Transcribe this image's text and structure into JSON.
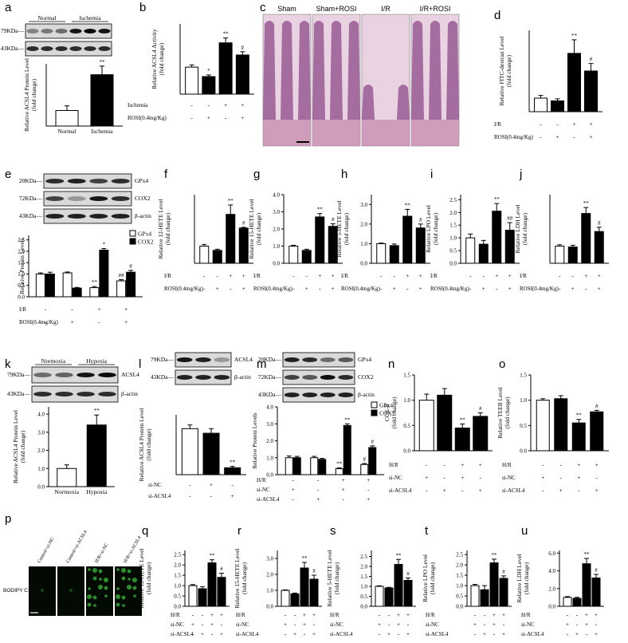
{
  "panel_letters": [
    "a",
    "b",
    "c",
    "d",
    "e",
    "f",
    "g",
    "h",
    "i",
    "j",
    "k",
    "l",
    "m",
    "n",
    "o",
    "p",
    "q",
    "r",
    "s",
    "t",
    "u"
  ],
  "blots": {
    "a": {
      "groups": [
        "Normal",
        "Ischemia"
      ],
      "kda": [
        "79KDa",
        "43KDa"
      ]
    },
    "e": {
      "kda": [
        "20KDa",
        "72KDa",
        "43KDa"
      ],
      "proteins": [
        "GPx4",
        "COX2",
        "β-actin"
      ]
    },
    "k": {
      "groups": [
        "Normoxia",
        "Hypoxia"
      ],
      "kda": [
        "79KDa",
        "43KDa"
      ],
      "proteins": [
        "ACSL4",
        "β-actin"
      ]
    },
    "l": {
      "kda": [
        "79KDa",
        "43KDa"
      ],
      "proteins": [
        "ACSL4",
        "β-actin"
      ]
    },
    "m": {
      "kda": [
        "20KDa",
        "72KDa",
        "43KDa"
      ],
      "proteins": [
        "GPx4",
        "COX2",
        "β-actin"
      ]
    }
  },
  "histology": {
    "labels": [
      "Sham",
      "Sham+ROSI",
      "I/R",
      "I/R+ROSI"
    ]
  },
  "fluorescence": {
    "row_label": "BODIPY C11",
    "labels": [
      "Control+si-NC",
      "Control+si-ACSL4",
      "H/R+si-NC",
      "H/R+si-ACSL4"
    ]
  },
  "chart_data": [
    {
      "id": "a",
      "type": "bar",
      "ylabel": "Relative ACSL4 Protein Level\n(fold change)",
      "categories": [
        "Normal",
        "Ischemia"
      ],
      "values": [
        1.0,
        3.3
      ],
      "errors": [
        0.3,
        0.55
      ],
      "fills": [
        "#ffffff",
        "#000000"
      ],
      "sig": [
        "",
        "**"
      ],
      "ylim": [
        0,
        4
      ],
      "ticks": [],
      "treatments": []
    },
    {
      "id": "b",
      "type": "bar",
      "ylabel": "Relative ACSL4 Activity\n(fold change)",
      "values": [
        1.0,
        0.65,
        1.9,
        1.45
      ],
      "errors": [
        0.08,
        0.06,
        0.18,
        0.12
      ],
      "fills": [
        "#ffffff",
        "#000000",
        "#000000",
        "#000000"
      ],
      "sig": [
        "",
        "*",
        "**",
        "#"
      ],
      "ylim": [
        0,
        2.6
      ],
      "ticks": [],
      "treatments": [
        {
          "label": "Ischemia",
          "marks": [
            "-",
            "-",
            "+",
            "+"
          ]
        },
        {
          "label": "ROSI(0.4mg/Kg)",
          "marks": [
            "-",
            "+",
            "-",
            "+"
          ]
        }
      ]
    },
    {
      "id": "d",
      "type": "bar",
      "ylabel": "Relative FITC-dextran Level\n(fold change)",
      "values": [
        1.0,
        0.8,
        4.3,
        3.0
      ],
      "errors": [
        0.2,
        0.15,
        1.0,
        0.55
      ],
      "fills": [
        "#ffffff",
        "#000000",
        "#000000",
        "#000000"
      ],
      "sig": [
        "",
        "",
        "**",
        "#"
      ],
      "ylim": [
        0,
        6
      ],
      "ticks": [],
      "treatments": [
        {
          "label": "I/R",
          "marks": [
            "-",
            "-",
            "+",
            "+"
          ]
        },
        {
          "label": "ROSI(0.4mg/Kg)",
          "marks": [
            "-",
            "+",
            "-",
            "+"
          ]
        }
      ]
    },
    {
      "id": "e",
      "type": "grouped-bar",
      "ylabel": "Relative Protein Levels",
      "series": [
        {
          "name": "GPx4",
          "values": [
            1.0,
            1.05,
            0.4,
            0.7
          ],
          "errors": [
            0.05,
            0.04,
            0.05,
            0.05
          ]
        },
        {
          "name": "COX2",
          "values": [
            1.0,
            0.38,
            2.05,
            1.08
          ],
          "errors": [
            0.08,
            0.03,
            0.07,
            0.08
          ]
        }
      ],
      "fills": [
        "#ffffff",
        "#000000"
      ],
      "sig_series": [
        [
          "",
          "",
          "**",
          "##"
        ],
        [
          "",
          "",
          "*",
          "#"
        ]
      ],
      "ylim": [
        0,
        2.7
      ],
      "ticks": [
        0,
        0.5,
        1.0,
        1.5,
        2.0,
        2.5
      ],
      "treatments": [
        {
          "label": "I/R",
          "marks": [
            "-",
            "-",
            "+",
            "+"
          ]
        },
        {
          "label": "ROSI(0.4mg/Kg)",
          "marks": [
            "-",
            "+",
            "-",
            "+"
          ]
        }
      ]
    },
    {
      "id": "f",
      "type": "bar",
      "ylabel": "Relative 12-HETE Level\n(fold change)",
      "values": [
        1.0,
        0.75,
        2.85,
        2.05
      ],
      "errors": [
        0.1,
        0.07,
        0.55,
        0.05
      ],
      "fills": [
        "#ffffff",
        "#000000",
        "#000000",
        "#000000"
      ],
      "sig": [
        "",
        "",
        "**",
        "#"
      ],
      "ylim": [
        0,
        4
      ],
      "ticks": [],
      "treatments": [
        {
          "label": "I/R",
          "marks": [
            "-",
            "-",
            "+",
            "+"
          ]
        },
        {
          "label": "ROSI(0.4mg/Kg)",
          "marks": [
            "-",
            "+",
            "-",
            "+"
          ]
        }
      ]
    },
    {
      "id": "g",
      "type": "bar",
      "ylabel": "Relative 15-HETE Level\n(fold change)",
      "values": [
        1.0,
        0.75,
        2.7,
        2.15
      ],
      "errors": [
        0.05,
        0.07,
        0.2,
        0.15
      ],
      "fills": [
        "#ffffff",
        "#000000",
        "#000000",
        "#000000"
      ],
      "sig": [
        "",
        "",
        "**",
        "#"
      ],
      "ylim": [
        0,
        4
      ],
      "ticks": [
        0,
        1.0,
        2.0,
        3.0,
        4.0
      ],
      "treatments": [
        {
          "label": "I/R",
          "marks": [
            "-",
            "-",
            "+",
            "+"
          ]
        },
        {
          "label": "ROSI(0.4mg/Kg)",
          "marks": [
            "-",
            "+",
            "-",
            "+"
          ]
        }
      ]
    },
    {
      "id": "h",
      "type": "bar",
      "ylabel": "Relative 5-HETE Level\n(fold change)",
      "values": [
        1.0,
        0.9,
        2.4,
        1.8
      ],
      "errors": [
        0.03,
        0.08,
        0.35,
        0.2
      ],
      "fills": [
        "#ffffff",
        "#000000",
        "#000000",
        "#000000"
      ],
      "sig": [
        "",
        "",
        "**",
        "#"
      ],
      "ylim": [
        0,
        3.5
      ],
      "ticks": [
        0,
        1.0,
        2.0,
        3.0
      ],
      "treatments": [
        {
          "label": "I/R",
          "marks": [
            "-",
            "-",
            "+",
            "+"
          ]
        },
        {
          "label": "ROSI(0.4mg/Kg)",
          "marks": [
            "-",
            "+",
            "-",
            "+"
          ]
        }
      ]
    },
    {
      "id": "i",
      "type": "bar",
      "ylabel": "Relative LPO Level\n(fold change)",
      "values": [
        1.0,
        0.75,
        2.05,
        1.3
      ],
      "errors": [
        0.15,
        0.15,
        0.3,
        0.3
      ],
      "fills": [
        "#ffffff",
        "#000000",
        "#000000",
        "#000000"
      ],
      "sig": [
        "",
        "",
        "**",
        "##"
      ],
      "ylim": [
        0,
        2.7
      ],
      "ticks": [
        0,
        0.5,
        1.0,
        1.5,
        2.0,
        2.5
      ],
      "treatments": [
        {
          "label": "I/R",
          "marks": [
            "-",
            "-",
            "+",
            "+"
          ]
        },
        {
          "label": "ROSI(0.4mg/Kg)",
          "marks": [
            "-",
            "+",
            "-",
            "+"
          ]
        }
      ]
    },
    {
      "id": "j",
      "type": "bar",
      "ylabel": "Relative LDH Level\n(fold change)",
      "values": [
        1.0,
        0.95,
        2.9,
        1.85
      ],
      "errors": [
        0.08,
        0.1,
        0.35,
        0.25
      ],
      "fills": [
        "#ffffff",
        "#000000",
        "#000000",
        "#000000"
      ],
      "sig": [
        "",
        "",
        "**",
        "#"
      ],
      "ylim": [
        0,
        4
      ],
      "ticks": [],
      "treatments": [
        {
          "label": "I/R",
          "marks": [
            "-",
            "-",
            "+",
            "+"
          ]
        },
        {
          "label": "ROSI(0.4mg/Kg)",
          "marks": [
            "-",
            "+",
            "-",
            "+"
          ]
        }
      ]
    },
    {
      "id": "k",
      "type": "bar",
      "ylabel": "Relative ACSL4 Protein Level\n(fold change)",
      "categories": [
        "Normoxia",
        "Hypoxia"
      ],
      "values": [
        1.0,
        3.4
      ],
      "errors": [
        0.2,
        0.55
      ],
      "fills": [
        "#ffffff",
        "#000000"
      ],
      "sig": [
        "",
        "**"
      ],
      "ylim": [
        0,
        4.4
      ],
      "ticks": [
        0,
        1.0,
        2.0,
        3.0,
        4.0
      ],
      "treatments": []
    },
    {
      "id": "l",
      "type": "bar",
      "ylabel": "Relative ACSL4 Protein Level\n(fold change)",
      "values": [
        1.0,
        0.9,
        0.15
      ],
      "errors": [
        0.08,
        0.1,
        0.03
      ],
      "fills": [
        "#ffffff",
        "#000000",
        "#000000"
      ],
      "sig": [
        "",
        "",
        "**"
      ],
      "ylim": [
        0,
        1.3
      ],
      "ticks": [],
      "treatments": [
        {
          "label": "si-NC",
          "marks": [
            "-",
            "+",
            "-"
          ]
        },
        {
          "label": "si-ACSL4",
          "marks": [
            "-",
            "-",
            "+"
          ]
        }
      ]
    },
    {
      "id": "m",
      "type": "grouped-bar",
      "ylabel": "Relative Protein Levels",
      "series": [
        {
          "name": "GPx4",
          "values": [
            1.0,
            1.0,
            0.35,
            0.6
          ],
          "errors": [
            0.1,
            0.08,
            0.05,
            0.06
          ]
        },
        {
          "name": "COX2",
          "values": [
            1.0,
            0.9,
            2.9,
            1.6
          ],
          "errors": [
            0.08,
            0.06,
            0.1,
            0.1
          ]
        }
      ],
      "fills": [
        "#ffffff",
        "#000000"
      ],
      "sig_series": [
        [
          "",
          "",
          "**",
          "#"
        ],
        [
          "",
          "",
          "**",
          "#"
        ]
      ],
      "ylim": [
        0,
        4
      ],
      "ticks": [
        0,
        1.0,
        2.0,
        3.0,
        4.0
      ],
      "treatments": [
        {
          "label": "H/R",
          "marks": [
            "-",
            "-",
            "+",
            "+"
          ]
        },
        {
          "label": "si-NC",
          "marks": [
            "+",
            "-",
            "+",
            "-"
          ]
        },
        {
          "label": "si-ACSL4",
          "marks": [
            "-",
            "+",
            "-",
            "+"
          ]
        }
      ]
    },
    {
      "id": "n",
      "type": "bar",
      "ylabel": "CCK-8\n(fold change)",
      "values": [
        1.0,
        1.1,
        0.45,
        0.68
      ],
      "errors": [
        0.12,
        0.13,
        0.08,
        0.07
      ],
      "fills": [
        "#ffffff",
        "#000000",
        "#000000",
        "#000000"
      ],
      "sig": [
        "",
        "",
        "**",
        "#"
      ],
      "ylim": [
        0,
        1.5
      ],
      "ticks": [
        0,
        0.5,
        1.0,
        1.5
      ],
      "treatments": [
        {
          "label": "H/R",
          "marks": [
            "-",
            "-",
            "+",
            "+"
          ]
        },
        {
          "label": "si-NC",
          "marks": [
            "+",
            "-",
            "+",
            "-"
          ]
        },
        {
          "label": "si-ACSL4",
          "marks": [
            "-",
            "+",
            "-",
            "+"
          ]
        }
      ]
    },
    {
      "id": "o",
      "type": "bar",
      "ylabel": "Relative TEER Level\n(fold change)",
      "values": [
        1.0,
        1.03,
        0.55,
        0.77
      ],
      "errors": [
        0.03,
        0.06,
        0.07,
        0.03
      ],
      "fills": [
        "#ffffff",
        "#000000",
        "#000000",
        "#000000"
      ],
      "sig": [
        "",
        "",
        "**",
        "#"
      ],
      "ylim": [
        0,
        1.5
      ],
      "ticks": [
        0,
        0.5,
        1.0,
        1.5
      ],
      "treatments": [
        {
          "label": "H/R",
          "marks": [
            "-",
            "-",
            "+",
            "+"
          ]
        },
        {
          "label": "si-NC",
          "marks": [
            "+",
            "-",
            "+",
            "-"
          ]
        },
        {
          "label": "si-ACSL4",
          "marks": [
            "-",
            "+",
            "-",
            "+"
          ]
        }
      ]
    },
    {
      "id": "q",
      "type": "bar",
      "ylabel": "Relative 12-HETE Level\n(fold change)",
      "values": [
        1.0,
        0.85,
        2.1,
        1.4
      ],
      "errors": [
        0.05,
        0.1,
        0.15,
        0.2
      ],
      "fills": [
        "#ffffff",
        "#000000",
        "#000000",
        "#000000"
      ],
      "sig": [
        "",
        "",
        "**",
        "#"
      ],
      "ylim": [
        0,
        2.7
      ],
      "ticks": [
        0,
        0.5,
        1.0,
        1.5,
        2.0,
        2.5
      ],
      "treatments": [
        {
          "label": "H/R",
          "marks": [
            "-",
            "-",
            "+",
            "+"
          ]
        },
        {
          "label": "si-NC",
          "marks": [
            "+",
            "-",
            "+",
            "-"
          ]
        },
        {
          "label": "si-ACSL4",
          "marks": [
            "-",
            "+",
            "-",
            "+"
          ]
        }
      ]
    },
    {
      "id": "r",
      "type": "bar",
      "ylabel": "Relative 15-HETE Level\n(fold change)",
      "values": [
        1.0,
        0.78,
        2.4,
        1.7
      ],
      "errors": [
        0.03,
        0.05,
        0.35,
        0.25
      ],
      "fills": [
        "#ffffff",
        "#000000",
        "#000000",
        "#000000"
      ],
      "sig": [
        "",
        "",
        "**",
        "#"
      ],
      "ylim": [
        0,
        3.5
      ],
      "ticks": [
        0,
        1.0,
        2.0,
        3.0
      ],
      "treatments": [
        {
          "label": "H/R",
          "marks": [
            "-",
            "-",
            "+",
            "+"
          ]
        },
        {
          "label": "si-NC",
          "marks": [
            "+",
            "-",
            "+",
            "-"
          ]
        },
        {
          "label": "si-ACSL4",
          "marks": [
            "-",
            "+",
            "-",
            "+"
          ]
        }
      ]
    },
    {
      "id": "s",
      "type": "bar",
      "ylabel": "Relative 5-HETE Level\n(fold change)",
      "values": [
        1.0,
        0.92,
        2.1,
        1.3
      ],
      "errors": [
        0.03,
        0.03,
        0.25,
        0.12
      ],
      "fills": [
        "#ffffff",
        "#000000",
        "#000000",
        "#000000"
      ],
      "sig": [
        "",
        "",
        "**",
        "#"
      ],
      "ylim": [
        0,
        2.8
      ],
      "ticks": [
        0,
        0.5,
        1.0,
        1.5,
        2.0,
        2.5
      ],
      "treatments": [
        {
          "label": "H/R",
          "marks": [
            "-",
            "-",
            "+",
            "+"
          ]
        },
        {
          "label": "si-NC",
          "marks": [
            "+",
            "-",
            "+",
            "-"
          ]
        },
        {
          "label": "si-ACSL4",
          "marks": [
            "-",
            "+",
            "-",
            "+"
          ]
        }
      ]
    },
    {
      "id": "t",
      "type": "bar",
      "ylabel": "Relative LPO Level\n(fold change)",
      "values": [
        1.0,
        0.8,
        2.1,
        1.35
      ],
      "errors": [
        0.06,
        0.2,
        0.18,
        0.12
      ],
      "fills": [
        "#ffffff",
        "#000000",
        "#000000",
        "#000000"
      ],
      "sig": [
        "",
        "",
        "**",
        "#"
      ],
      "ylim": [
        0,
        2.7
      ],
      "ticks": [
        0,
        0.5,
        1.0,
        1.5,
        2.0,
        2.5
      ],
      "treatments": [
        {
          "label": "H/R",
          "marks": [
            "-",
            "-",
            "+",
            "+"
          ]
        },
        {
          "label": "si-NC",
          "marks": [
            "+",
            "-",
            "+",
            "-"
          ]
        },
        {
          "label": "si-ACSL4",
          "marks": [
            "-",
            "+",
            "-",
            "+"
          ]
        }
      ]
    },
    {
      "id": "u",
      "type": "bar",
      "ylabel": "Relative LDH Level\n(fold change)",
      "values": [
        1.0,
        0.9,
        4.8,
        3.2
      ],
      "errors": [
        0.1,
        0.12,
        0.6,
        0.4
      ],
      "fills": [
        "#ffffff",
        "#000000",
        "#000000",
        "#000000"
      ],
      "sig": [
        "",
        "",
        "**",
        "#"
      ],
      "ylim": [
        0,
        6.3
      ],
      "ticks": [
        0,
        2.0,
        4.0,
        6.0
      ],
      "treatments": [
        {
          "label": "H/R",
          "marks": [
            "-",
            "-",
            "+",
            "+"
          ]
        },
        {
          "label": "si-NC",
          "marks": [
            "+",
            "-",
            "+",
            "-"
          ]
        },
        {
          "label": "si-ACSL4",
          "marks": [
            "-",
            "+",
            "-",
            "+"
          ]
        }
      ]
    }
  ]
}
